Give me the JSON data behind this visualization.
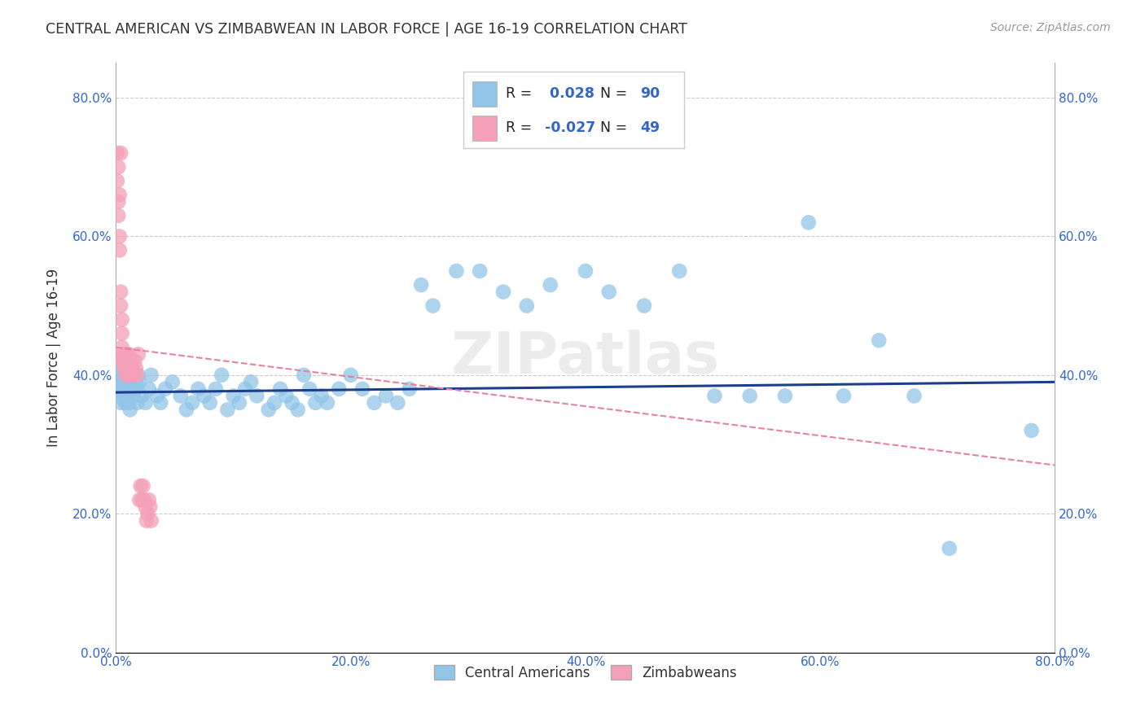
{
  "title": "CENTRAL AMERICAN VS ZIMBABWEAN IN LABOR FORCE | AGE 16-19 CORRELATION CHART",
  "source": "Source: ZipAtlas.com",
  "ylabel": "In Labor Force | Age 16-19",
  "xlim": [
    0.0,
    0.8
  ],
  "ylim": [
    0.0,
    0.85
  ],
  "yticks": [
    0.0,
    0.2,
    0.4,
    0.6,
    0.8
  ],
  "xticks": [
    0.0,
    0.2,
    0.4,
    0.6,
    0.8
  ],
  "blue_color": "#92C5E8",
  "pink_color": "#F4A0B8",
  "blue_line_color": "#1C3F8C",
  "pink_line_color": "#E8829A",
  "R_blue": 0.028,
  "N_blue": 90,
  "R_pink": -0.027,
  "N_pink": 49,
  "watermark": "ZIPatlas",
  "blue_x": [
    0.001,
    0.002,
    0.002,
    0.003,
    0.003,
    0.004,
    0.004,
    0.005,
    0.005,
    0.006,
    0.006,
    0.007,
    0.007,
    0.008,
    0.008,
    0.009,
    0.009,
    0.01,
    0.01,
    0.011,
    0.011,
    0.012,
    0.013,
    0.014,
    0.015,
    0.016,
    0.017,
    0.018,
    0.019,
    0.02,
    0.022,
    0.025,
    0.028,
    0.03,
    0.035,
    0.038,
    0.042,
    0.048,
    0.055,
    0.06,
    0.065,
    0.07,
    0.075,
    0.08,
    0.085,
    0.09,
    0.095,
    0.1,
    0.105,
    0.11,
    0.115,
    0.12,
    0.13,
    0.135,
    0.14,
    0.145,
    0.15,
    0.155,
    0.16,
    0.165,
    0.17,
    0.175,
    0.18,
    0.19,
    0.2,
    0.21,
    0.22,
    0.23,
    0.24,
    0.25,
    0.26,
    0.27,
    0.29,
    0.31,
    0.33,
    0.35,
    0.37,
    0.4,
    0.42,
    0.45,
    0.48,
    0.51,
    0.54,
    0.57,
    0.59,
    0.62,
    0.65,
    0.68,
    0.71,
    0.78
  ],
  "blue_y": [
    0.38,
    0.4,
    0.39,
    0.37,
    0.41,
    0.38,
    0.36,
    0.42,
    0.4,
    0.38,
    0.39,
    0.37,
    0.41,
    0.38,
    0.36,
    0.4,
    0.42,
    0.38,
    0.39,
    0.37,
    0.36,
    0.35,
    0.38,
    0.4,
    0.37,
    0.38,
    0.39,
    0.36,
    0.4,
    0.39,
    0.37,
    0.36,
    0.38,
    0.4,
    0.37,
    0.36,
    0.38,
    0.39,
    0.37,
    0.35,
    0.36,
    0.38,
    0.37,
    0.36,
    0.38,
    0.4,
    0.35,
    0.37,
    0.36,
    0.38,
    0.39,
    0.37,
    0.35,
    0.36,
    0.38,
    0.37,
    0.36,
    0.35,
    0.4,
    0.38,
    0.36,
    0.37,
    0.36,
    0.38,
    0.4,
    0.38,
    0.36,
    0.37,
    0.36,
    0.38,
    0.53,
    0.5,
    0.55,
    0.55,
    0.52,
    0.5,
    0.53,
    0.55,
    0.52,
    0.5,
    0.55,
    0.37,
    0.37,
    0.37,
    0.62,
    0.37,
    0.45,
    0.37,
    0.15,
    0.32
  ],
  "pink_x": [
    0.001,
    0.001,
    0.002,
    0.002,
    0.002,
    0.003,
    0.003,
    0.003,
    0.004,
    0.004,
    0.004,
    0.005,
    0.005,
    0.005,
    0.006,
    0.006,
    0.006,
    0.007,
    0.007,
    0.008,
    0.008,
    0.008,
    0.009,
    0.009,
    0.01,
    0.01,
    0.011,
    0.011,
    0.012,
    0.012,
    0.013,
    0.013,
    0.014,
    0.015,
    0.016,
    0.017,
    0.018,
    0.019,
    0.02,
    0.021,
    0.022,
    0.023,
    0.024,
    0.025,
    0.026,
    0.027,
    0.028,
    0.029,
    0.03
  ],
  "pink_y": [
    0.72,
    0.68,
    0.7,
    0.65,
    0.63,
    0.66,
    0.6,
    0.58,
    0.72,
    0.52,
    0.5,
    0.48,
    0.46,
    0.44,
    0.42,
    0.43,
    0.42,
    0.41,
    0.43,
    0.42,
    0.4,
    0.42,
    0.43,
    0.41,
    0.4,
    0.42,
    0.43,
    0.42,
    0.41,
    0.42,
    0.4,
    0.42,
    0.41,
    0.4,
    0.42,
    0.41,
    0.4,
    0.43,
    0.22,
    0.24,
    0.22,
    0.24,
    0.22,
    0.21,
    0.19,
    0.2,
    0.22,
    0.21,
    0.19
  ]
}
